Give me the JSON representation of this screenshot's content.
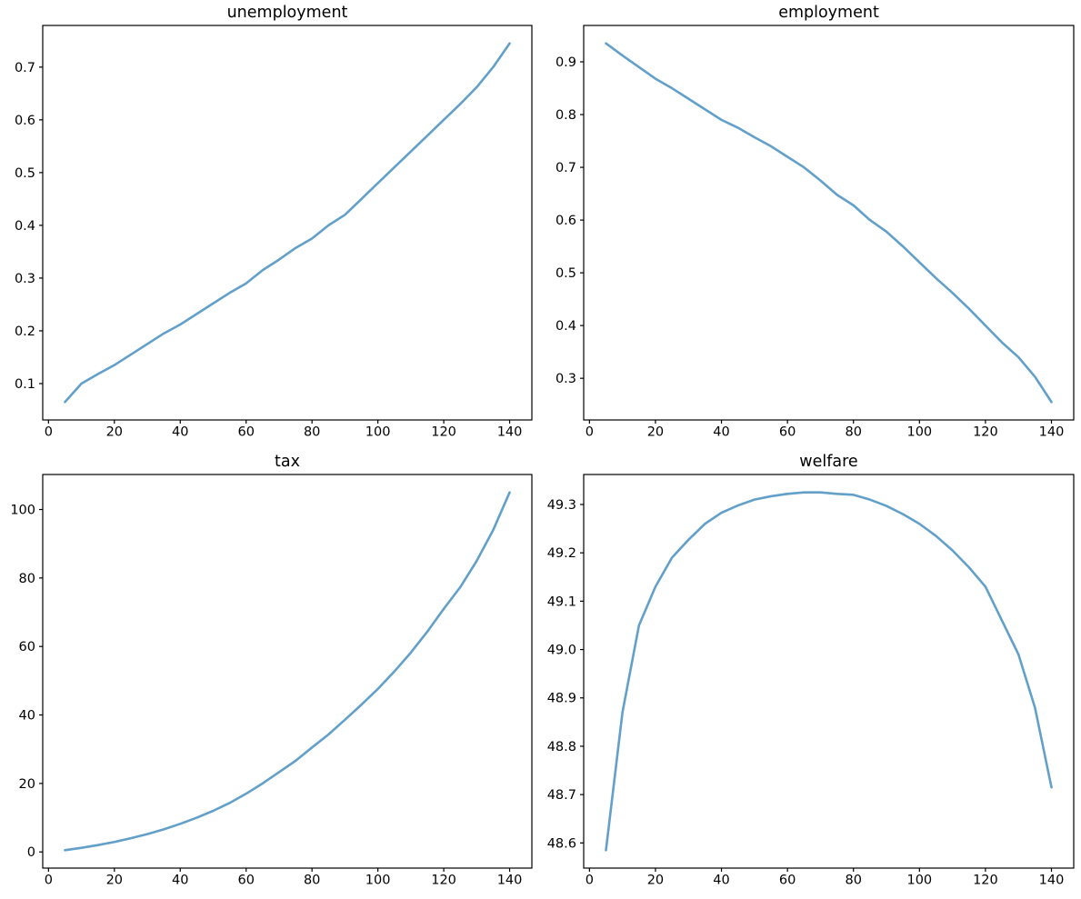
{
  "figure": {
    "background": "#ffffff",
    "axis_color": "#000000",
    "line_color": "#62a0ca"
  },
  "chart_data": [
    {
      "type": "line",
      "title": "unemployment",
      "xlabel": "",
      "ylabel": "",
      "legend": null,
      "grid": false,
      "x_ticks": [
        0,
        20,
        40,
        60,
        80,
        100,
        120,
        140
      ],
      "x_tick_decimals": 0,
      "y_ticks": [
        0.1,
        0.2,
        0.3,
        0.4,
        0.5,
        0.6,
        0.7
      ],
      "y_tick_decimals": 1,
      "xlim_data": [
        5,
        140
      ],
      "ylim_data": [
        0.065,
        0.745
      ],
      "x": [
        5,
        10,
        15,
        20,
        25,
        30,
        35,
        40,
        45,
        50,
        55,
        60,
        65,
        70,
        75,
        80,
        85,
        90,
        95,
        100,
        105,
        110,
        115,
        120,
        125,
        130,
        135,
        140
      ],
      "y": [
        0.065,
        0.1,
        0.118,
        0.135,
        0.155,
        0.175,
        0.195,
        0.212,
        0.232,
        0.252,
        0.272,
        0.29,
        0.315,
        0.335,
        0.357,
        0.375,
        0.4,
        0.42,
        0.45,
        0.48,
        0.51,
        0.54,
        0.57,
        0.6,
        0.63,
        0.662,
        0.7,
        0.745
      ]
    },
    {
      "type": "line",
      "title": "employment",
      "xlabel": "",
      "ylabel": "",
      "legend": null,
      "grid": false,
      "x_ticks": [
        0,
        20,
        40,
        60,
        80,
        100,
        120,
        140
      ],
      "x_tick_decimals": 0,
      "y_ticks": [
        0.3,
        0.4,
        0.5,
        0.6,
        0.7,
        0.8,
        0.9
      ],
      "y_tick_decimals": 1,
      "xlim_data": [
        5,
        140
      ],
      "ylim_data": [
        0.255,
        0.935
      ],
      "x": [
        5,
        10,
        15,
        20,
        25,
        30,
        35,
        40,
        45,
        50,
        55,
        60,
        65,
        70,
        75,
        80,
        85,
        90,
        95,
        100,
        105,
        110,
        115,
        120,
        125,
        130,
        135,
        140
      ],
      "y": [
        0.935,
        0.912,
        0.89,
        0.868,
        0.85,
        0.83,
        0.81,
        0.79,
        0.775,
        0.757,
        0.74,
        0.72,
        0.7,
        0.675,
        0.648,
        0.628,
        0.6,
        0.578,
        0.55,
        0.52,
        0.49,
        0.462,
        0.432,
        0.4,
        0.368,
        0.34,
        0.303,
        0.255
      ]
    },
    {
      "type": "line",
      "title": "tax",
      "xlabel": "",
      "ylabel": "",
      "legend": null,
      "grid": false,
      "x_ticks": [
        0,
        20,
        40,
        60,
        80,
        100,
        120,
        140
      ],
      "x_tick_decimals": 0,
      "y_ticks": [
        0,
        20,
        40,
        60,
        80,
        100
      ],
      "y_tick_decimals": 0,
      "xlim_data": [
        5,
        140
      ],
      "ylim_data": [
        0.5,
        105
      ],
      "x": [
        5,
        10,
        15,
        20,
        25,
        30,
        35,
        40,
        45,
        50,
        55,
        60,
        65,
        70,
        75,
        80,
        85,
        90,
        95,
        100,
        105,
        110,
        115,
        120,
        125,
        130,
        135,
        140
      ],
      "y": [
        0.5,
        1.2,
        2.0,
        2.9,
        4.0,
        5.2,
        6.6,
        8.2,
        10.0,
        12.0,
        14.3,
        17.0,
        20.0,
        23.3,
        26.6,
        30.5,
        34.3,
        38.6,
        43.0,
        47.6,
        52.7,
        58.2,
        64.3,
        71.0,
        77.3,
        85.0,
        94.0,
        105.0
      ]
    },
    {
      "type": "line",
      "title": "welfare",
      "xlabel": "",
      "ylabel": "",
      "legend": null,
      "grid": false,
      "x_ticks": [
        0,
        20,
        40,
        60,
        80,
        100,
        120,
        140
      ],
      "x_tick_decimals": 0,
      "y_ticks": [
        48.6,
        48.7,
        48.8,
        48.9,
        49.0,
        49.1,
        49.2,
        49.3
      ],
      "y_tick_decimals": 1,
      "xlim_data": [
        5,
        140
      ],
      "ylim_data": [
        48.585,
        49.325
      ],
      "x": [
        5,
        10,
        15,
        20,
        25,
        30,
        35,
        40,
        45,
        50,
        55,
        60,
        65,
        70,
        75,
        80,
        85,
        90,
        95,
        100,
        105,
        110,
        115,
        120,
        125,
        130,
        135,
        140
      ],
      "y": [
        48.585,
        48.87,
        49.05,
        49.13,
        49.19,
        49.227,
        49.26,
        49.283,
        49.298,
        49.31,
        49.317,
        49.322,
        49.325,
        49.325,
        49.322,
        49.32,
        49.31,
        49.297,
        49.28,
        49.26,
        49.235,
        49.205,
        49.17,
        49.13,
        49.06,
        48.99,
        48.88,
        48.715
      ]
    }
  ]
}
